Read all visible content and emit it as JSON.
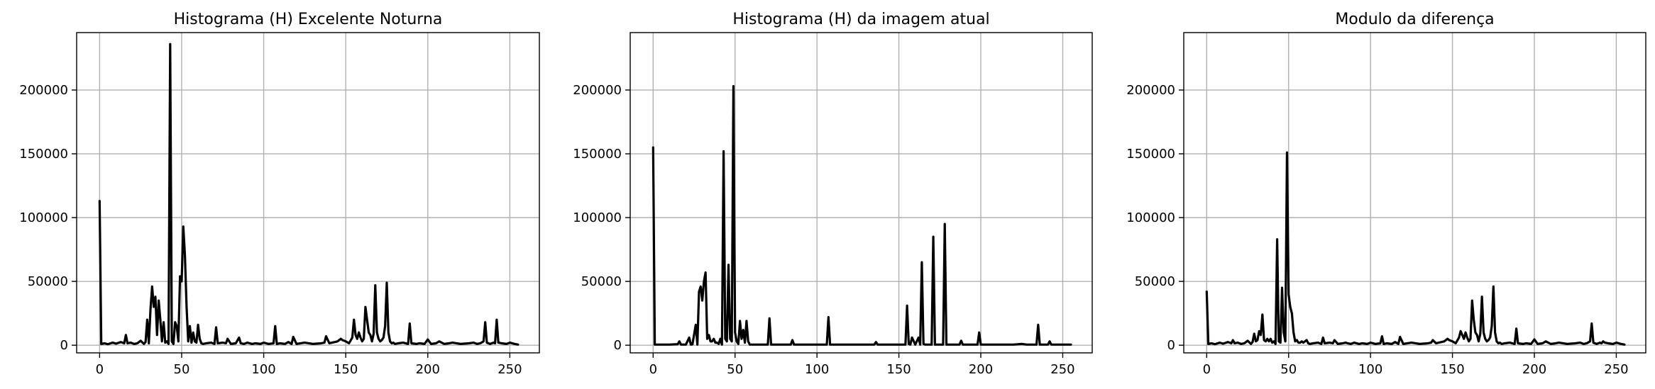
{
  "chart_data": [
    {
      "type": "line",
      "title": "Histograma (H) Excelente Noturna",
      "xlabel": "",
      "ylabel": "",
      "xlim": [
        -14,
        268
      ],
      "ylim": [
        -6000,
        245000
      ],
      "xticks": [
        0,
        50,
        100,
        150,
        200,
        250
      ],
      "yticks": [
        0,
        50000,
        100000,
        150000,
        200000
      ],
      "grid": true,
      "line_color": "#000000",
      "series": [
        {
          "x": [
            0,
            1,
            3,
            5,
            8,
            10,
            13,
            15,
            16,
            17,
            19,
            21,
            23,
            25,
            27,
            28,
            29,
            30,
            31,
            32,
            33,
            34,
            35,
            36,
            37,
            38,
            39,
            40,
            41,
            42,
            43,
            44,
            45,
            46,
            47,
            48,
            49,
            50,
            51,
            52,
            53,
            54,
            55,
            56,
            57,
            58,
            59,
            60,
            61,
            62,
            63,
            65,
            68,
            70,
            71,
            72,
            75,
            77,
            78,
            80,
            83,
            85,
            86,
            88,
            90,
            93,
            95,
            98,
            100,
            103,
            106,
            107,
            108,
            110,
            113,
            115,
            117,
            118,
            120,
            125,
            130,
            135,
            137,
            138,
            140,
            145,
            147,
            148,
            150,
            152,
            154,
            155,
            156,
            157,
            158,
            159,
            160,
            161,
            162,
            163,
            164,
            165,
            166,
            167,
            168,
            169,
            170,
            171,
            172,
            173,
            174,
            175,
            176,
            177,
            178,
            179,
            180,
            182,
            185,
            188,
            189,
            190,
            193,
            195,
            198,
            200,
            202,
            205,
            207,
            210,
            213,
            215,
            220,
            225,
            228,
            230,
            232,
            234,
            235,
            236,
            238,
            240,
            241,
            242,
            243,
            245,
            248,
            250,
            253,
            255
          ],
          "y": [
            113000,
            1000,
            1500,
            800,
            2000,
            1200,
            2500,
            1500,
            8000,
            1500,
            2000,
            1000,
            1500,
            3500,
            1000,
            2500,
            20000,
            1500,
            28000,
            46000,
            30000,
            38000,
            8000,
            35000,
            20000,
            3000,
            18000,
            2000,
            3000,
            1000,
            236000,
            3000,
            1000,
            18000,
            15000,
            3000,
            54000,
            50000,
            93000,
            70000,
            30000,
            3000,
            15000,
            2000,
            10000,
            3000,
            2000,
            16000,
            5000,
            1500,
            1000,
            1500,
            2000,
            1000,
            14000,
            1500,
            2000,
            1500,
            5000,
            1000,
            1500,
            6000,
            1500,
            1000,
            2000,
            1000,
            1500,
            1000,
            2000,
            1000,
            1500,
            15000,
            1000,
            1500,
            1000,
            2500,
            1000,
            6500,
            1000,
            2000,
            1000,
            1500,
            2000,
            7000,
            1500,
            3000,
            5000,
            4000,
            3000,
            1500,
            6000,
            20000,
            8000,
            5000,
            10000,
            6000,
            3000,
            5000,
            30000,
            20000,
            10000,
            8000,
            3000,
            9000,
            47000,
            10000,
            5000,
            3000,
            4000,
            6000,
            15000,
            49000,
            10000,
            3000,
            1500,
            2000,
            1000,
            1500,
            2000,
            1000,
            17000,
            1500,
            1000,
            1500,
            1000,
            4500,
            1000,
            1500,
            3000,
            1000,
            1500,
            2000,
            1000,
            1500,
            2000,
            1000,
            1500,
            3000,
            18000,
            2000,
            1000,
            2000,
            1500,
            20000,
            2000,
            1500,
            1000,
            2000,
            1000,
            500
          ]
        }
      ]
    },
    {
      "type": "line",
      "title": "Histograma (H) da imagem atual",
      "xlabel": "",
      "ylabel": "",
      "xlim": [
        -14,
        268
      ],
      "ylim": [
        -6000,
        245000
      ],
      "xticks": [
        0,
        50,
        100,
        150,
        200,
        250
      ],
      "yticks": [
        0,
        50000,
        100000,
        150000,
        200000
      ],
      "grid": true,
      "line_color": "#000000",
      "series": [
        {
          "x": [
            0,
            1,
            5,
            10,
            15,
            16,
            17,
            20,
            22,
            23,
            24,
            26,
            27,
            28,
            29,
            30,
            31,
            32,
            33,
            34,
            35,
            36,
            37,
            38,
            39,
            40,
            41,
            42,
            43,
            44,
            45,
            46,
            47,
            48,
            49,
            50,
            51,
            52,
            53,
            54,
            55,
            56,
            57,
            58,
            59,
            60,
            62,
            65,
            68,
            70,
            71,
            72,
            75,
            80,
            84,
            85,
            86,
            90,
            100,
            105,
            106,
            107,
            108,
            110,
            120,
            130,
            135,
            136,
            137,
            140,
            150,
            154,
            155,
            156,
            157,
            158,
            160,
            162,
            163,
            164,
            165,
            166,
            168,
            169,
            170,
            171,
            172,
            174,
            176,
            177,
            178,
            179,
            180,
            185,
            187,
            188,
            189,
            190,
            195,
            198,
            199,
            200,
            202,
            205,
            210,
            220,
            225,
            228,
            230,
            232,
            234,
            235,
            236,
            238,
            240,
            241,
            242,
            243,
            245,
            250,
            255
          ],
          "y": [
            155000,
            500,
            500,
            500,
            800,
            3000,
            500,
            500,
            6000,
            500,
            700,
            16000,
            500,
            42000,
            46000,
            35000,
            50000,
            57000,
            5000,
            8000,
            3000,
            3000,
            5000,
            2000,
            2000,
            1000,
            5000,
            500,
            152000,
            5000,
            3000,
            63000,
            5000,
            3000,
            203000,
            10000,
            3000,
            1000,
            19000,
            5000,
            12000,
            2000,
            19000,
            3000,
            500,
            500,
            500,
            500,
            500,
            500,
            21000,
            500,
            500,
            500,
            500,
            4000,
            500,
            500,
            500,
            500,
            500,
            22000,
            500,
            500,
            500,
            500,
            500,
            2500,
            500,
            500,
            500,
            500,
            31000,
            1000,
            500,
            6000,
            500,
            6000,
            500,
            65000,
            1000,
            500,
            500,
            500,
            500,
            85000,
            500,
            500,
            500,
            500,
            95000,
            500,
            500,
            500,
            500,
            3500,
            500,
            500,
            500,
            500,
            10000,
            500,
            500,
            500,
            500,
            500,
            1000,
            500,
            500,
            500,
            500,
            16000,
            500,
            500,
            500,
            500,
            3000,
            500,
            500,
            500,
            500
          ]
        }
      ]
    },
    {
      "type": "line",
      "title": "Modulo da diferença",
      "xlabel": "",
      "ylabel": "",
      "xlim": [
        -14,
        268
      ],
      "ylim": [
        -6000,
        245000
      ],
      "xticks": [
        0,
        50,
        100,
        150,
        200,
        250
      ],
      "yticks": [
        0,
        50000,
        100000,
        150000,
        200000
      ],
      "grid": true,
      "line_color": "#000000",
      "series": [
        {
          "x": [
            0,
            1,
            3,
            5,
            8,
            10,
            13,
            15,
            16,
            17,
            19,
            21,
            23,
            25,
            27,
            28,
            29,
            30,
            31,
            32,
            33,
            34,
            35,
            36,
            37,
            38,
            39,
            40,
            41,
            42,
            43,
            44,
            45,
            46,
            47,
            48,
            49,
            50,
            51,
            52,
            53,
            54,
            55,
            56,
            57,
            58,
            59,
            60,
            61,
            62,
            63,
            65,
            68,
            70,
            71,
            72,
            75,
            77,
            78,
            80,
            83,
            85,
            86,
            88,
            90,
            93,
            95,
            98,
            100,
            103,
            106,
            107,
            108,
            110,
            113,
            115,
            117,
            118,
            120,
            125,
            130,
            135,
            137,
            138,
            140,
            145,
            147,
            148,
            150,
            152,
            154,
            155,
            156,
            157,
            158,
            159,
            160,
            161,
            162,
            163,
            164,
            165,
            166,
            167,
            168,
            169,
            170,
            171,
            172,
            173,
            174,
            175,
            176,
            177,
            178,
            179,
            180,
            182,
            185,
            188,
            189,
            190,
            193,
            195,
            198,
            200,
            202,
            205,
            207,
            210,
            213,
            215,
            220,
            225,
            228,
            230,
            232,
            234,
            235,
            236,
            238,
            240,
            241,
            242,
            243,
            245,
            248,
            250,
            253,
            255
          ],
          "y": [
            42000,
            1000,
            1500,
            800,
            2000,
            1200,
            2500,
            1500,
            4000,
            1500,
            2000,
            1000,
            1500,
            3500,
            1000,
            2500,
            9000,
            3000,
            4000,
            11000,
            8000,
            24000,
            4000,
            3000,
            5000,
            3000,
            5000,
            2000,
            3000,
            1000,
            83000,
            3000,
            2000,
            45000,
            10000,
            3000,
            151000,
            40000,
            30000,
            25000,
            10000,
            3000,
            4000,
            2000,
            2000,
            3000,
            2000,
            3000,
            4000,
            1500,
            1000,
            1500,
            2000,
            1000,
            6000,
            1500,
            2000,
            1500,
            4000,
            1000,
            1500,
            2000,
            1500,
            1000,
            2000,
            1000,
            1500,
            1000,
            2000,
            1000,
            1500,
            7000,
            1000,
            1500,
            1000,
            2500,
            1000,
            6500,
            1000,
            2000,
            1000,
            1500,
            2000,
            4000,
            1500,
            3000,
            5000,
            4000,
            3000,
            1500,
            6000,
            11000,
            8000,
            5000,
            10000,
            6000,
            3000,
            5000,
            35000,
            20000,
            10000,
            8000,
            3000,
            9000,
            38000,
            10000,
            5000,
            3000,
            4000,
            6000,
            15000,
            46000,
            10000,
            3000,
            1500,
            2000,
            1000,
            1500,
            2000,
            1000,
            13000,
            1500,
            1000,
            1500,
            1000,
            4500,
            1000,
            1500,
            3000,
            1000,
            1500,
            2000,
            1000,
            1500,
            2000,
            1000,
            1500,
            3000,
            17000,
            2000,
            1000,
            2000,
            1500,
            3000,
            2000,
            1500,
            1000,
            2000,
            1000,
            500
          ]
        }
      ]
    }
  ]
}
